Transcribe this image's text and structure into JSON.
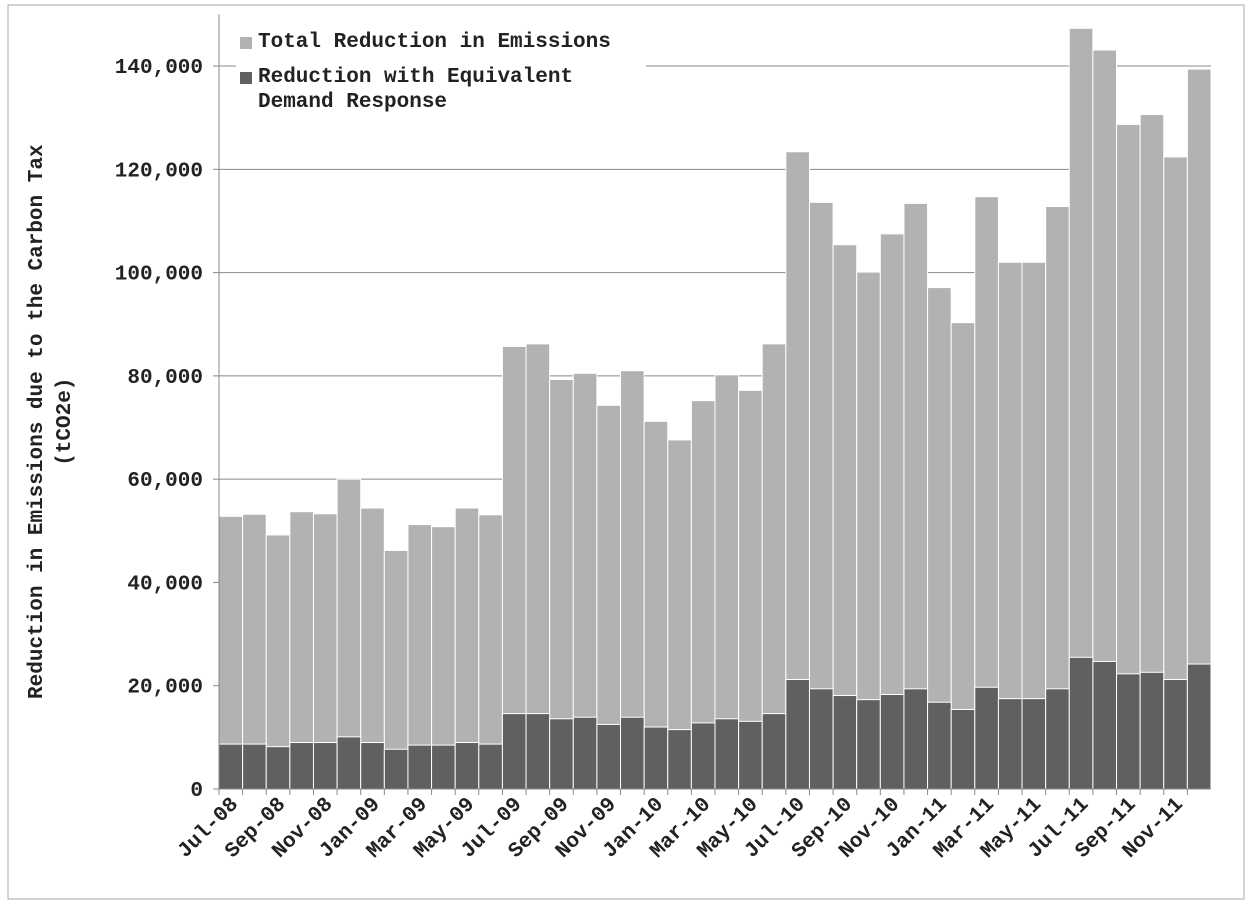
{
  "chart_data": {
    "type": "bar",
    "ylabel": [
      "Reduction in Emissions due to the Carbon Tax",
      "(tCO2e)"
    ],
    "categories": [
      "Jul-08",
      null,
      "Sep-08",
      null,
      "Nov-08",
      null,
      "Jan-09",
      null,
      "Mar-09",
      null,
      "May-09",
      null,
      "Jul-09",
      null,
      "Sep-09",
      null,
      "Nov-09",
      null,
      "Jan-10",
      null,
      "Mar-10",
      null,
      "May-10",
      null,
      "Jul-10",
      null,
      "Sep-10",
      null,
      "Nov-10",
      null,
      "Jan-11",
      null,
      "Mar-11",
      null,
      "May-11",
      null,
      "Jul-11",
      null,
      "Sep-11",
      null,
      "Nov-11",
      null
    ],
    "series": [
      {
        "name": "Total Reduction in Emissions",
        "color": "#b2b2b2",
        "values": [
          52800,
          53200,
          49200,
          53700,
          53300,
          60000,
          54400,
          46200,
          51200,
          50800,
          54400,
          53100,
          85700,
          86200,
          79300,
          80500,
          74300,
          81000,
          71200,
          67600,
          75200,
          80200,
          77200,
          86200,
          123400,
          113600,
          105400,
          100100,
          107500,
          113400,
          97100,
          90300,
          114700,
          102000,
          102000,
          112800,
          147300,
          143100,
          128700,
          130600,
          122400,
          139400
        ]
      },
      {
        "name": "Reduction with Equivalent Demand Response",
        "color": "#606060",
        "values": [
          8700,
          8700,
          8200,
          9000,
          9000,
          10100,
          9000,
          7700,
          8500,
          8500,
          9000,
          8700,
          14600,
          14600,
          13600,
          13900,
          12500,
          13900,
          12000,
          11500,
          12800,
          13600,
          13100,
          14600,
          21200,
          19400,
          18100,
          17300,
          18300,
          19400,
          16800,
          15400,
          19700,
          17500,
          17500,
          19400,
          25500,
          24700,
          22300,
          22600,
          21200,
          24200
        ]
      }
    ],
    "ylim": [
      0,
      150000
    ],
    "yticks": [
      0,
      {
        "value": 20000,
        "label": "20,000"
      },
      {
        "value": 40000,
        "label": "40,000"
      },
      {
        "value": 60000,
        "label": "60,000"
      },
      {
        "value": 80000,
        "label": "80,000"
      },
      {
        "value": 100000,
        "label": "100,000"
      },
      {
        "value": 120000,
        "label": "120,000"
      },
      {
        "value": 140000,
        "label": "140,000"
      }
    ],
    "grid": true,
    "legend": "top-left"
  }
}
